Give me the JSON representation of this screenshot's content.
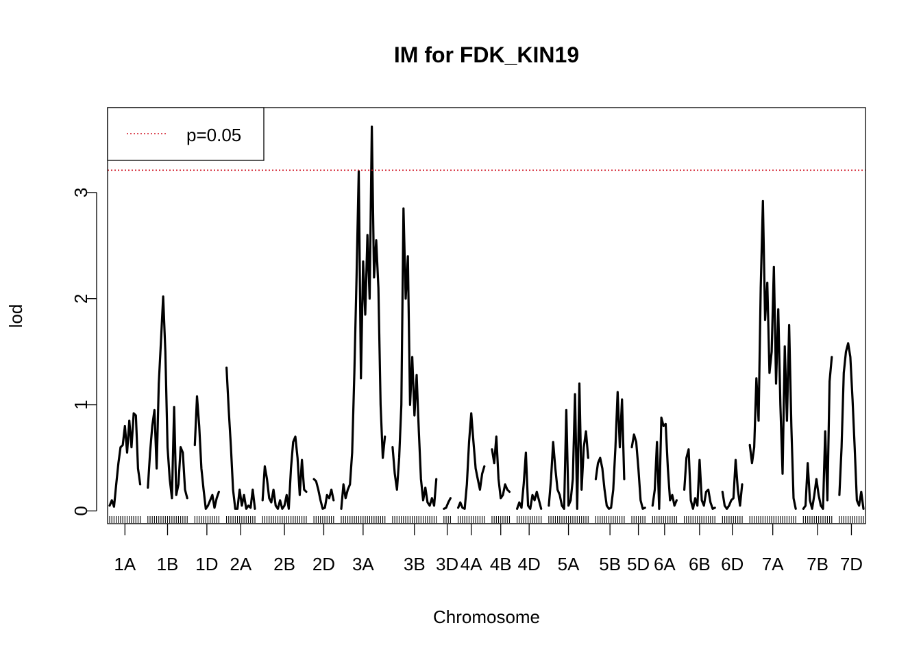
{
  "chart_data": {
    "type": "line",
    "title": "IM for FDK_KIN19",
    "xlabel": "Chromosome",
    "ylabel": "lod",
    "ylim": [
      -0.12,
      3.8
    ],
    "yticks": [
      0,
      1,
      2,
      3
    ],
    "threshold": {
      "value": 3.21,
      "label": "p=0.05",
      "color": "#d01020",
      "style": "dotted"
    },
    "legend": {
      "position": "top-left",
      "label": "p=0.05"
    },
    "line_color": "#000000",
    "grid": false,
    "chromosomes": [
      {
        "name": "1A",
        "points": [
          [
            0,
            0.05
          ],
          [
            1,
            0.1
          ],
          [
            2,
            0.04
          ],
          [
            3,
            0.25
          ],
          [
            4,
            0.45
          ],
          [
            5,
            0.6
          ],
          [
            6,
            0.62
          ],
          [
            7,
            0.8
          ],
          [
            8,
            0.55
          ],
          [
            9,
            0.85
          ],
          [
            10,
            0.6
          ],
          [
            11,
            0.92
          ],
          [
            12,
            0.9
          ],
          [
            13,
            0.4
          ],
          [
            14,
            0.25
          ]
        ]
      },
      {
        "name": "1B",
        "points": [
          [
            0,
            0.22
          ],
          [
            1,
            0.55
          ],
          [
            2,
            0.8
          ],
          [
            3,
            0.95
          ],
          [
            4,
            0.4
          ],
          [
            5,
            1.2
          ],
          [
            6,
            1.6
          ],
          [
            7,
            2.02
          ],
          [
            8,
            1.5
          ],
          [
            9,
            0.6
          ],
          [
            10,
            0.3
          ],
          [
            11,
            0.12
          ],
          [
            12,
            0.98
          ],
          [
            13,
            0.15
          ],
          [
            14,
            0.25
          ],
          [
            15,
            0.6
          ],
          [
            16,
            0.55
          ],
          [
            17,
            0.2
          ],
          [
            18,
            0.12
          ]
        ]
      },
      {
        "name": "1D",
        "points": [
          [
            0,
            0.62
          ],
          [
            1,
            1.08
          ],
          [
            2,
            0.8
          ],
          [
            3,
            0.4
          ],
          [
            4,
            0.2
          ],
          [
            5,
            0.02
          ],
          [
            6,
            0.05
          ],
          [
            7,
            0.1
          ],
          [
            8,
            0.15
          ],
          [
            9,
            0.03
          ],
          [
            10,
            0.12
          ],
          [
            11,
            0.18
          ]
        ]
      },
      {
        "name": "2A",
        "points": [
          [
            0,
            1.35
          ],
          [
            1,
            0.95
          ],
          [
            2,
            0.6
          ],
          [
            3,
            0.2
          ],
          [
            4,
            0.02
          ],
          [
            5,
            0.02
          ],
          [
            6,
            0.2
          ],
          [
            7,
            0.05
          ],
          [
            8,
            0.15
          ],
          [
            9,
            0.02
          ],
          [
            10,
            0.05
          ],
          [
            11,
            0.03
          ],
          [
            12,
            0.2
          ],
          [
            13,
            0.02
          ]
        ]
      },
      {
        "name": "2B",
        "points": [
          [
            0,
            0.1
          ],
          [
            1,
            0.42
          ],
          [
            2,
            0.3
          ],
          [
            3,
            0.12
          ],
          [
            4,
            0.08
          ],
          [
            5,
            0.2
          ],
          [
            6,
            0.05
          ],
          [
            7,
            0.02
          ],
          [
            8,
            0.1
          ],
          [
            9,
            0.02
          ],
          [
            10,
            0.05
          ],
          [
            11,
            0.15
          ],
          [
            12,
            0.02
          ],
          [
            13,
            0.4
          ],
          [
            14,
            0.65
          ],
          [
            15,
            0.7
          ],
          [
            16,
            0.5
          ],
          [
            17,
            0.15
          ],
          [
            18,
            0.48
          ],
          [
            19,
            0.2
          ],
          [
            20,
            0.18
          ]
        ]
      },
      {
        "name": "2D",
        "points": [
          [
            0,
            0.3
          ],
          [
            1,
            0.28
          ],
          [
            2,
            0.2
          ],
          [
            3,
            0.1
          ],
          [
            4,
            0.02
          ],
          [
            5,
            0.03
          ],
          [
            6,
            0.15
          ],
          [
            7,
            0.12
          ],
          [
            8,
            0.2
          ],
          [
            9,
            0.1
          ]
        ]
      },
      {
        "name": "3A",
        "points": [
          [
            0,
            0.02
          ],
          [
            1,
            0.25
          ],
          [
            2,
            0.12
          ],
          [
            3,
            0.2
          ],
          [
            4,
            0.25
          ],
          [
            5,
            0.55
          ],
          [
            6,
            1.3
          ],
          [
            7,
            2.2
          ],
          [
            8,
            3.2
          ],
          [
            9,
            1.25
          ],
          [
            10,
            2.35
          ],
          [
            11,
            1.85
          ],
          [
            12,
            2.6
          ],
          [
            13,
            2.0
          ],
          [
            14,
            3.62
          ],
          [
            15,
            2.2
          ],
          [
            16,
            2.55
          ],
          [
            17,
            2.1
          ],
          [
            18,
            1.0
          ],
          [
            19,
            0.5
          ],
          [
            20,
            0.7
          ]
        ]
      },
      {
        "name": "3B",
        "points": [
          [
            0,
            0.6
          ],
          [
            1,
            0.35
          ],
          [
            2,
            0.2
          ],
          [
            3,
            0.5
          ],
          [
            4,
            1.0
          ],
          [
            5,
            2.85
          ],
          [
            6,
            2.0
          ],
          [
            7,
            2.4
          ],
          [
            8,
            1.0
          ],
          [
            9,
            1.45
          ],
          [
            10,
            0.9
          ],
          [
            11,
            1.28
          ],
          [
            12,
            0.75
          ],
          [
            13,
            0.3
          ],
          [
            14,
            0.1
          ],
          [
            15,
            0.22
          ],
          [
            16,
            0.08
          ],
          [
            17,
            0.05
          ],
          [
            18,
            0.12
          ],
          [
            19,
            0.05
          ],
          [
            20,
            0.3
          ]
        ]
      },
      {
        "name": "3D",
        "points": [
          [
            0,
            0.02
          ],
          [
            1,
            0.03
          ],
          [
            2,
            0.08
          ],
          [
            3,
            0.12
          ]
        ]
      },
      {
        "name": "4A",
        "points": [
          [
            0,
            0.03
          ],
          [
            1,
            0.08
          ],
          [
            2,
            0.03
          ],
          [
            3,
            0.02
          ],
          [
            4,
            0.25
          ],
          [
            5,
            0.65
          ],
          [
            6,
            0.92
          ],
          [
            7,
            0.65
          ],
          [
            8,
            0.4
          ],
          [
            9,
            0.3
          ],
          [
            10,
            0.2
          ],
          [
            11,
            0.35
          ],
          [
            12,
            0.42
          ]
        ]
      },
      {
        "name": "4B",
        "points": [
          [
            0,
            0.58
          ],
          [
            1,
            0.45
          ],
          [
            2,
            0.7
          ],
          [
            3,
            0.3
          ],
          [
            4,
            0.12
          ],
          [
            5,
            0.15
          ],
          [
            6,
            0.25
          ],
          [
            7,
            0.2
          ],
          [
            8,
            0.18
          ]
        ]
      },
      {
        "name": "4D",
        "points": [
          [
            0,
            0.02
          ],
          [
            1,
            0.08
          ],
          [
            2,
            0.03
          ],
          [
            3,
            0.25
          ],
          [
            4,
            0.55
          ],
          [
            5,
            0.05
          ],
          [
            6,
            0.02
          ],
          [
            7,
            0.15
          ],
          [
            8,
            0.1
          ],
          [
            9,
            0.18
          ],
          [
            10,
            0.1
          ],
          [
            11,
            0.02
          ]
        ]
      },
      {
        "name": "5A",
        "points": [
          [
            0,
            0.05
          ],
          [
            1,
            0.3
          ],
          [
            2,
            0.65
          ],
          [
            3,
            0.4
          ],
          [
            4,
            0.2
          ],
          [
            5,
            0.15
          ],
          [
            6,
            0.05
          ],
          [
            7,
            0.02
          ],
          [
            8,
            0.95
          ],
          [
            9,
            0.05
          ],
          [
            10,
            0.1
          ],
          [
            11,
            0.3
          ],
          [
            12,
            1.1
          ],
          [
            13,
            0.02
          ],
          [
            14,
            1.2
          ],
          [
            15,
            0.2
          ],
          [
            16,
            0.6
          ],
          [
            17,
            0.75
          ],
          [
            18,
            0.5
          ]
        ]
      },
      {
        "name": "5B",
        "points": [
          [
            0,
            0.3
          ],
          [
            1,
            0.45
          ],
          [
            2,
            0.5
          ],
          [
            3,
            0.4
          ],
          [
            4,
            0.2
          ],
          [
            5,
            0.05
          ],
          [
            6,
            0.02
          ],
          [
            7,
            0.03
          ],
          [
            8,
            0.2
          ],
          [
            9,
            0.6
          ],
          [
            10,
            1.12
          ],
          [
            11,
            0.6
          ],
          [
            12,
            1.05
          ],
          [
            13,
            0.3
          ]
        ]
      },
      {
        "name": "5D",
        "points": [
          [
            0,
            0.6
          ],
          [
            1,
            0.72
          ],
          [
            2,
            0.65
          ],
          [
            3,
            0.4
          ],
          [
            4,
            0.1
          ],
          [
            5,
            0.02
          ],
          [
            6,
            0.03
          ]
        ]
      },
      {
        "name": "6A",
        "points": [
          [
            0,
            0.05
          ],
          [
            1,
            0.2
          ],
          [
            2,
            0.65
          ],
          [
            3,
            0.02
          ],
          [
            4,
            0.88
          ],
          [
            5,
            0.8
          ],
          [
            6,
            0.82
          ],
          [
            7,
            0.4
          ],
          [
            8,
            0.1
          ],
          [
            9,
            0.15
          ],
          [
            10,
            0.05
          ],
          [
            11,
            0.1
          ]
        ]
      },
      {
        "name": "6B",
        "points": [
          [
            0,
            0.2
          ],
          [
            1,
            0.5
          ],
          [
            2,
            0.58
          ],
          [
            3,
            0.1
          ],
          [
            4,
            0.02
          ],
          [
            5,
            0.12
          ],
          [
            6,
            0.05
          ],
          [
            7,
            0.48
          ],
          [
            8,
            0.1
          ],
          [
            9,
            0.05
          ],
          [
            10,
            0.18
          ],
          [
            11,
            0.2
          ],
          [
            12,
            0.08
          ],
          [
            13,
            0.02
          ],
          [
            14,
            0.03
          ]
        ]
      },
      {
        "name": "6D",
        "points": [
          [
            0,
            0.18
          ],
          [
            1,
            0.05
          ],
          [
            2,
            0.02
          ],
          [
            3,
            0.05
          ],
          [
            4,
            0.1
          ],
          [
            5,
            0.12
          ],
          [
            6,
            0.48
          ],
          [
            7,
            0.2
          ],
          [
            8,
            0.05
          ],
          [
            9,
            0.25
          ]
        ]
      },
      {
        "name": "7A",
        "points": [
          [
            0,
            0.62
          ],
          [
            1,
            0.45
          ],
          [
            2,
            0.6
          ],
          [
            3,
            1.25
          ],
          [
            4,
            0.85
          ],
          [
            5,
            2.1
          ],
          [
            6,
            2.92
          ],
          [
            7,
            1.8
          ],
          [
            8,
            2.15
          ],
          [
            9,
            1.3
          ],
          [
            10,
            1.5
          ],
          [
            11,
            2.3
          ],
          [
            12,
            1.2
          ],
          [
            13,
            1.9
          ],
          [
            14,
            1.0
          ],
          [
            15,
            0.35
          ],
          [
            16,
            1.55
          ],
          [
            17,
            0.85
          ],
          [
            18,
            1.75
          ],
          [
            19,
            0.8
          ],
          [
            20,
            0.12
          ],
          [
            21,
            0.02
          ]
        ]
      },
      {
        "name": "7B",
        "points": [
          [
            0,
            0.02
          ],
          [
            1,
            0.05
          ],
          [
            2,
            0.45
          ],
          [
            3,
            0.1
          ],
          [
            4,
            0.02
          ],
          [
            5,
            0.15
          ],
          [
            6,
            0.3
          ],
          [
            7,
            0.15
          ],
          [
            8,
            0.05
          ],
          [
            9,
            0.02
          ],
          [
            10,
            0.75
          ],
          [
            11,
            0.1
          ],
          [
            12,
            1.22
          ],
          [
            13,
            1.45
          ]
        ]
      },
      {
        "name": "7D",
        "points": [
          [
            0,
            0.15
          ],
          [
            1,
            0.6
          ],
          [
            2,
            1.3
          ],
          [
            3,
            1.5
          ],
          [
            4,
            1.58
          ],
          [
            5,
            1.45
          ],
          [
            6,
            1.05
          ],
          [
            7,
            0.6
          ],
          [
            8,
            0.1
          ],
          [
            9,
            0.05
          ],
          [
            10,
            0.18
          ],
          [
            11,
            0.02
          ]
        ]
      }
    ]
  }
}
